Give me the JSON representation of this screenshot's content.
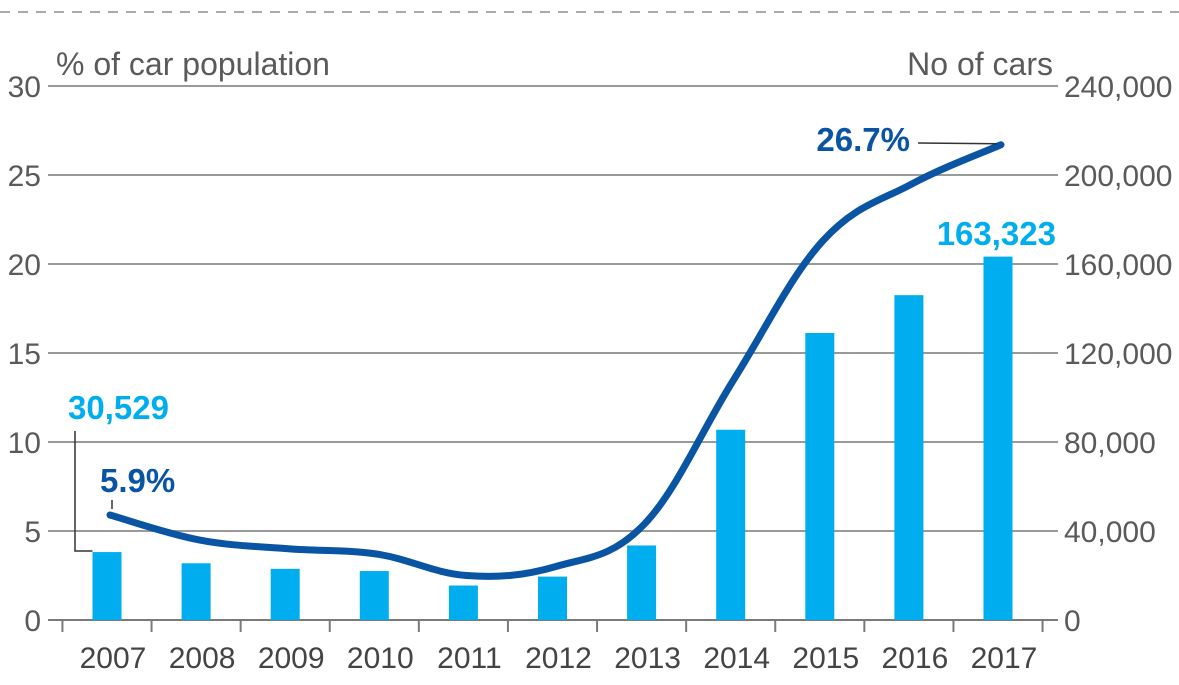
{
  "colors": {
    "bar": "#00aeef",
    "line": "#0a54a4",
    "grid": "#9a9a9a",
    "text": "#5a5a5a",
    "dashed_rule": "#aaaaaa"
  },
  "chart_data": {
    "type": "bar",
    "left_axis_label": "% of car population",
    "right_axis_label": "No of cars",
    "categories": [
      "2007",
      "2008",
      "2009",
      "2010",
      "2011",
      "2012",
      "2013",
      "2014",
      "2015",
      "2016",
      "2017"
    ],
    "series": [
      {
        "type": "bar",
        "axis": "right",
        "values": [
          30529,
          25500,
          23000,
          22000,
          15500,
          19500,
          33500,
          85500,
          129000,
          146000,
          163323
        ]
      },
      {
        "type": "line",
        "axis": "left",
        "values": [
          5.9,
          4.5,
          4.0,
          3.7,
          2.5,
          3.0,
          5.4,
          13.5,
          21.3,
          24.5,
          26.7
        ]
      }
    ],
    "left_ylim": [
      0,
      30
    ],
    "left_ticks": [
      "0",
      "5",
      "10",
      "15",
      "20",
      "25",
      "30"
    ],
    "right_ylim": [
      0,
      240000
    ],
    "right_ticks": [
      "0",
      "40,000",
      "80,000",
      "120,000",
      "160,000",
      "200,000",
      "240,000"
    ],
    "annotations": {
      "first_bar": "30,529",
      "first_line": "5.9%",
      "last_line": "26.7%",
      "last_bar": "163,323"
    },
    "grid": true
  }
}
